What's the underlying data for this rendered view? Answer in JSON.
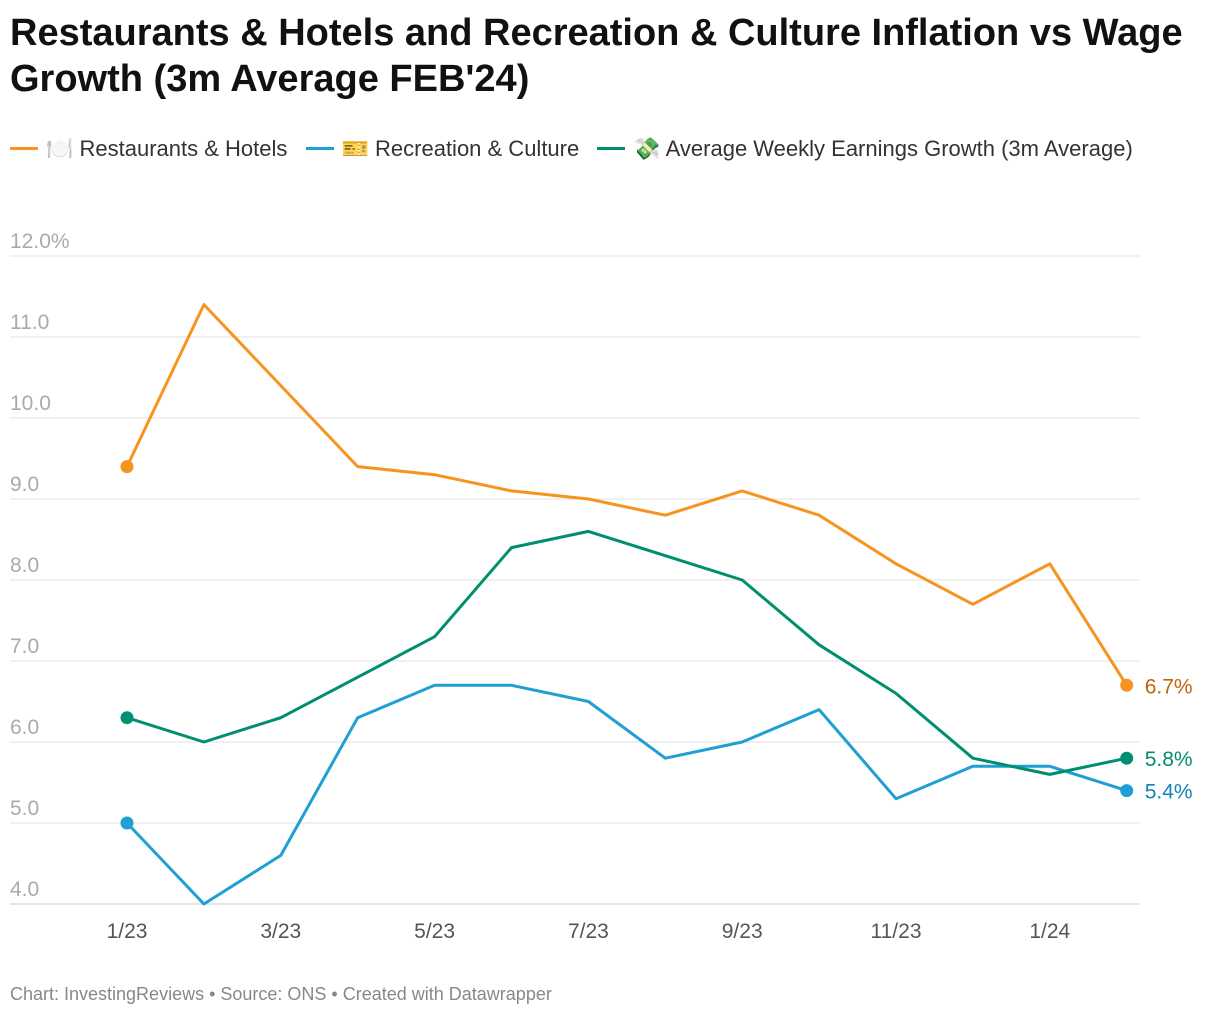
{
  "chart_data": {
    "type": "line",
    "title": "Restaurants & Hotels and Recreation & Culture Inflation vs Wage Growth (3m Average FEB'24)",
    "x": [
      "1/23",
      "2/23",
      "3/23",
      "4/23",
      "5/23",
      "6/23",
      "7/23",
      "8/23",
      "9/23",
      "10/23",
      "11/23",
      "12/23",
      "1/24",
      "2/24"
    ],
    "x_tick_labels": [
      "1/23",
      "3/23",
      "5/23",
      "7/23",
      "9/23",
      "11/23",
      "1/24"
    ],
    "y_tick_labels": [
      "12.0%",
      "11.0",
      "10.0",
      "9.0",
      "8.0",
      "7.0",
      "6.0",
      "5.0",
      "4.0"
    ],
    "ylim": [
      4,
      12
    ],
    "grid": true,
    "legend_position": "top",
    "series": [
      {
        "name": "🍽️ Restaurants & Hotels",
        "color": "#f7931e",
        "label_color": "#c0650a",
        "values": [
          9.4,
          11.4,
          10.4,
          9.4,
          9.3,
          9.1,
          9.0,
          8.8,
          9.1,
          8.8,
          8.2,
          7.7,
          8.2,
          6.7
        ],
        "end_label": "6.7%"
      },
      {
        "name": "🎫 Recreation & Culture",
        "color": "#1f9fd3",
        "label_color": "#1285b5",
        "values": [
          5.0,
          4.0,
          4.6,
          6.3,
          6.7,
          6.7,
          6.5,
          5.8,
          6.0,
          6.4,
          5.3,
          5.7,
          5.7,
          5.4
        ],
        "end_label": "5.4%"
      },
      {
        "name": "💸 Average Weekly Earnings Growth (3m Average)",
        "color": "#008f6e",
        "label_color": "#008f6e",
        "values": [
          6.3,
          6.0,
          6.3,
          6.8,
          7.3,
          8.4,
          8.6,
          8.3,
          8.0,
          7.2,
          6.6,
          5.8,
          5.6,
          5.8
        ],
        "end_label": "5.8%"
      }
    ]
  },
  "footer": "Chart: InvestingReviews • Source: ONS • Created with Datawrapper"
}
